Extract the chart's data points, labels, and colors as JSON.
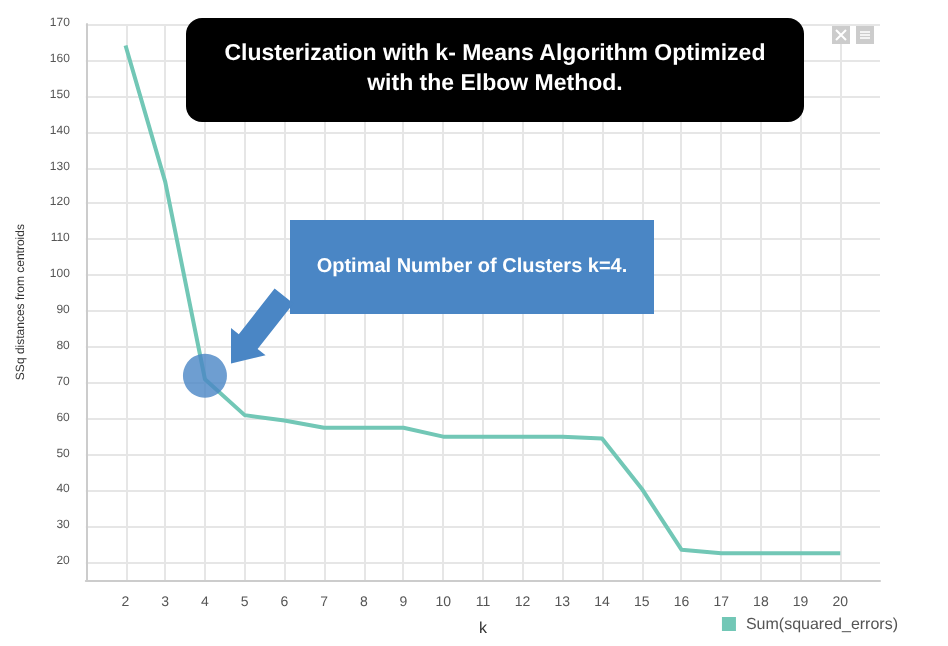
{
  "chart_data": {
    "type": "line",
    "title": "Clusterization with k- Means Algorithm Optimized with the Elbow Method.",
    "xlabel": "k",
    "ylabel": "SSq distances from centroids",
    "annotations": [
      "Optimal Number of Clusters k=4."
    ],
    "x": [
      2,
      3,
      4,
      5,
      6,
      7,
      8,
      9,
      10,
      11,
      12,
      13,
      14,
      15,
      16,
      17,
      18,
      19,
      20
    ],
    "series": [
      {
        "name": "Sum(squared_errors)",
        "color": "#72c7b6",
        "values": [
          164,
          126,
          71,
          61,
          59.5,
          57.5,
          57.5,
          57.5,
          55,
          55,
          55,
          55,
          54.5,
          40.5,
          23.5,
          22.5,
          22.5,
          22.5,
          22.5
        ]
      },
      {
        "type": "scatter",
        "marker": "circle",
        "color": "#4a86c5",
        "x": [
          4
        ],
        "values": [
          72
        ]
      }
    ],
    "xlim": [
      1,
      21
    ],
    "xticks": [
      2,
      3,
      4,
      5,
      6,
      7,
      8,
      9,
      10,
      11,
      12,
      13,
      14,
      15,
      16,
      17,
      18,
      19,
      20
    ],
    "ylim": [
      15,
      170
    ],
    "yticks": [
      20,
      30,
      40,
      50,
      60,
      70,
      80,
      90,
      100,
      110,
      120,
      130,
      140,
      150,
      160,
      170
    ],
    "grid": true,
    "legend": "bottom right",
    "marker": "none"
  }
}
